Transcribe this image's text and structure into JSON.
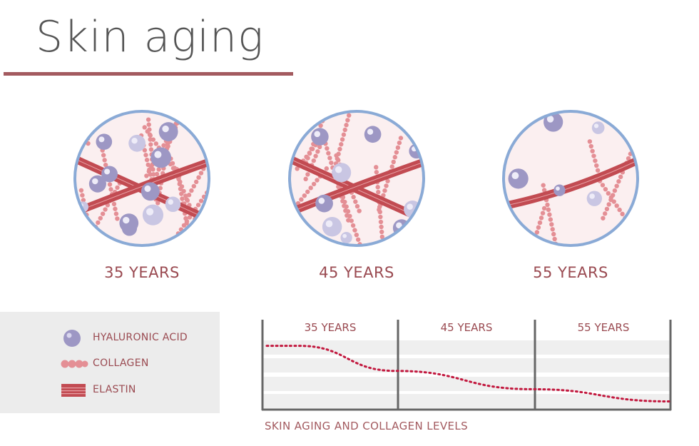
{
  "header": {
    "title": "Skin aging"
  },
  "stages": [
    {
      "label": "35 YEARS"
    },
    {
      "label": "45 YEARS"
    },
    {
      "label": "55 YEARS"
    }
  ],
  "legend": {
    "items": [
      {
        "label": "HYALURONIC ACID",
        "icon": "hyaluronic-acid-icon"
      },
      {
        "label": "COLLAGEN",
        "icon": "collagen-icon"
      },
      {
        "label": "ELASTIN",
        "icon": "elastin-icon"
      }
    ]
  },
  "colors": {
    "accent": "#a35a5f",
    "text": "#9a4a51",
    "circle_border": "#8aaad6",
    "collagen": "#e48f95",
    "elastin": "#c24b52",
    "hyaluronic": "#9d97c4",
    "curve": "#c2183e"
  },
  "chart_data": {
    "type": "line",
    "title": "SKIN AGING AND COLLAGEN LEVELS",
    "categories": [
      "35 YEARS",
      "45 YEARS",
      "55 YEARS"
    ],
    "series": [
      {
        "x": [
          0,
          0.08,
          0.32,
          0.66,
          1.0
        ],
        "values": [
          0.92,
          0.92,
          0.55,
          0.28,
          0.1
        ]
      }
    ],
    "grid": true
  }
}
